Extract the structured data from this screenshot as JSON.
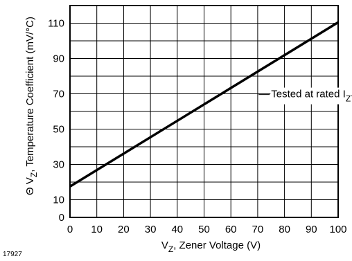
{
  "chart_data": {
    "type": "line",
    "x": [
      0,
      100
    ],
    "series": [
      {
        "values": [
          17.5,
          110.5
        ],
        "color": "#000000"
      }
    ],
    "xlim": [
      0,
      100
    ],
    "ylim": [
      0,
      120
    ],
    "x_ticks": [
      "0",
      "10",
      "20",
      "30",
      "40",
      "50",
      "60",
      "70",
      "80",
      "90",
      "100"
    ],
    "y_ticks": [
      "0",
      "10",
      "30",
      "50",
      "70",
      "90",
      "110"
    ],
    "grid": true,
    "xlabel": {
      "main": "V",
      "sub": "Z",
      "rest": ", Zener Voltage (V)"
    },
    "ylabel": {
      "prefix": "Θ V",
      "sub": "Z",
      "rest": ", Temperature Coefficient (mV/°C)"
    },
    "annotation": {
      "text": "Tested at rated I",
      "sub": "ZT",
      "x": 75,
      "y": 68
    }
  },
  "figure_id": "17927"
}
